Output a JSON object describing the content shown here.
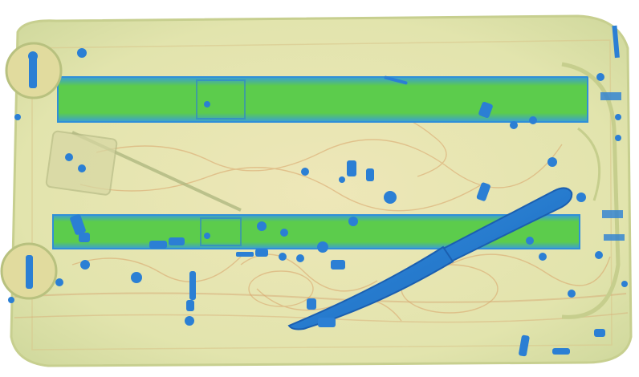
{
  "scene": {
    "kind": "xray-baggage-scan",
    "colors": {
      "background": "#ffffff",
      "bag_fill": "#e7e6b0",
      "bag_edge": "#c9cf92",
      "organic_trace": "#d9a36a",
      "metal_rail": "#52c84a",
      "metal_rail_edge": "#2f8fd8",
      "dense_metal": "#2b7fd4",
      "knife": "#2f88d8"
    },
    "objects": [
      {
        "name": "suitcase-shell"
      },
      {
        "name": "trolley-rail-top"
      },
      {
        "name": "trolley-rail-bottom"
      },
      {
        "name": "wheel-top-left"
      },
      {
        "name": "wheel-bottom-left"
      },
      {
        "name": "handle-right"
      },
      {
        "name": "knife"
      },
      {
        "name": "zipper-pulls"
      },
      {
        "name": "screws-and-rivets"
      }
    ]
  }
}
